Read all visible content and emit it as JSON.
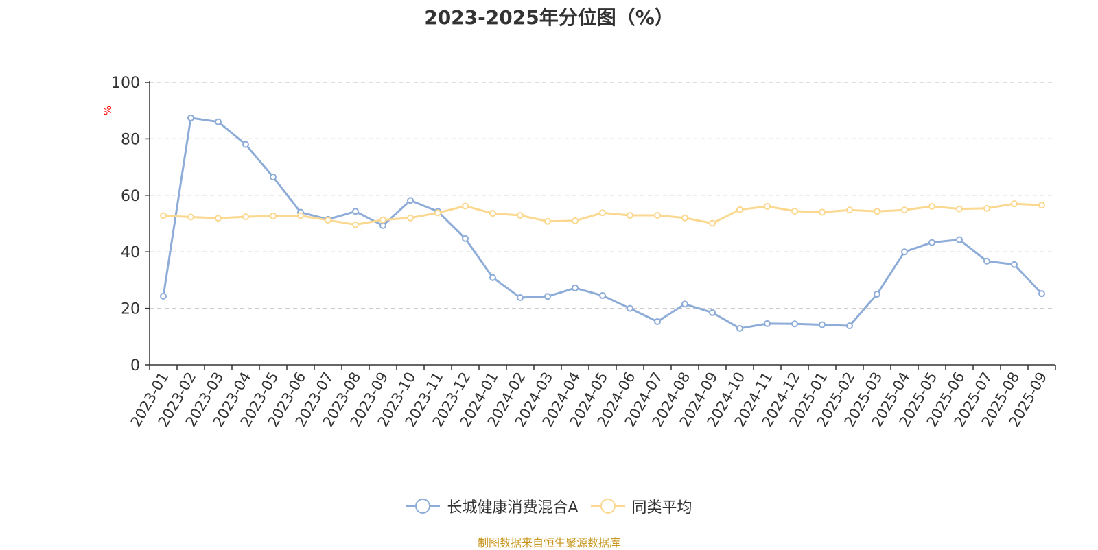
{
  "chart_data": {
    "type": "line",
    "title": "2023-2025年分位图（%）",
    "ylabel": "%",
    "ylim": [
      0,
      100
    ],
    "yticks": [
      "0",
      "20",
      "40",
      "60",
      "80",
      "100"
    ],
    "grid": true,
    "legend_position": "bottom-center",
    "categories": [
      "2023-01",
      "2023-02",
      "2023-03",
      "2023-04",
      "2023-05",
      "2023-06",
      "2023-07",
      "2023-08",
      "2023-09",
      "2023-10",
      "2023-11",
      "2023-12",
      "2024-01",
      "2024-02",
      "2024-03",
      "2024-04",
      "2024-05",
      "2024-06",
      "2024-07",
      "2024-08",
      "2024-09",
      "2024-10",
      "2024-11",
      "2024-12",
      "2025-01",
      "2025-02",
      "2025-03",
      "2025-04",
      "2025-05",
      "2025-06",
      "2025-07",
      "2025-08",
      "2025-09"
    ],
    "series": [
      {
        "name": "长城健康消费混合A",
        "color": "#8eacd8",
        "values": [
          24.3,
          87.4,
          86.0,
          78.0,
          66.5,
          54.0,
          51.5,
          54.3,
          49.3,
          58.2,
          54.3,
          44.7,
          30.9,
          23.8,
          24.2,
          27.2,
          24.5,
          20.0,
          15.3,
          21.5,
          18.5,
          12.9,
          14.6,
          14.5,
          14.2,
          13.8,
          25.0,
          40.0,
          43.3,
          44.3,
          36.7,
          35.5,
          25.2
        ]
      },
      {
        "name": "同类平均",
        "color": "#fbd88f",
        "values": [
          52.8,
          52.3,
          51.9,
          52.4,
          52.7,
          52.8,
          51.2,
          49.6,
          51.3,
          52.0,
          53.8,
          56.2,
          53.6,
          52.9,
          50.8,
          51.0,
          53.8,
          52.9,
          52.9,
          52.0,
          50.1,
          54.9,
          56.1,
          54.4,
          54.0,
          54.8,
          54.3,
          54.8,
          56.1,
          55.2,
          55.4,
          57.0,
          56.5
        ]
      }
    ]
  },
  "source_text": "制图数据来自恒生聚源数据库",
  "colors": {
    "axis": "#333333",
    "grid": "#cccccc",
    "unit": "#ff0000",
    "source": "#c8961e"
  }
}
